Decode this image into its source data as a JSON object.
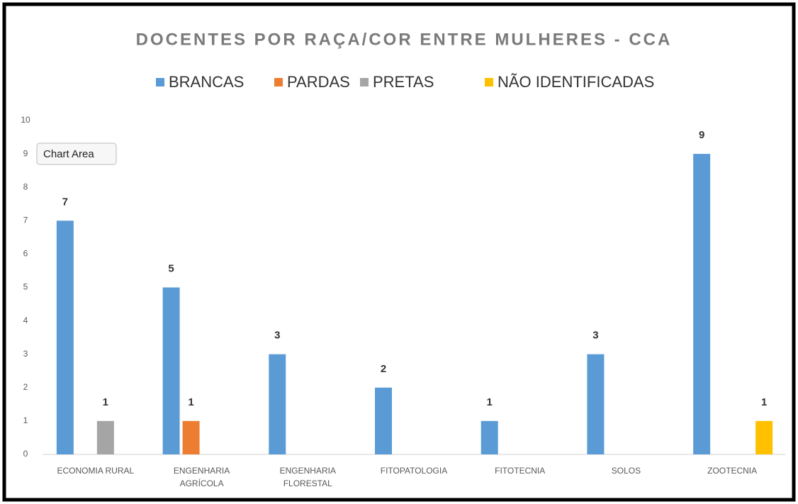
{
  "chart_data": {
    "type": "bar",
    "title": "DOCENTES POR RAÇA/COR ENTRE MULHERES - CCA",
    "tooltip": "Chart Area",
    "categories": [
      "ECONOMIA RURAL",
      "ENGENHARIA\nAGRÍCOLA",
      "ENGENHARIA\nFLORESTAL",
      "FITOPATOLOGIA",
      "FITOTECNIA",
      "SOLOS",
      "ZOOTECNIA"
    ],
    "series": [
      {
        "name": "BRANCAS",
        "color": "#5b9bd5",
        "values": [
          7,
          5,
          3,
          2,
          1,
          3,
          9
        ]
      },
      {
        "name": "PARDAS",
        "color": "#ed7d31",
        "values": [
          null,
          1,
          null,
          null,
          null,
          null,
          null
        ]
      },
      {
        "name": "PRETAS",
        "color": "#a5a5a5",
        "values": [
          1,
          null,
          null,
          null,
          null,
          null,
          null
        ]
      },
      {
        "name": "NÃO IDENTIFICADAS",
        "color": "#ffc000",
        "values": [
          null,
          null,
          null,
          null,
          null,
          null,
          1
        ]
      }
    ],
    "ylim": [
      0,
      10
    ],
    "yticks": [
      0,
      1,
      2,
      3,
      4,
      5,
      6,
      7,
      8,
      9,
      10
    ],
    "grid": false,
    "legend": "top"
  }
}
